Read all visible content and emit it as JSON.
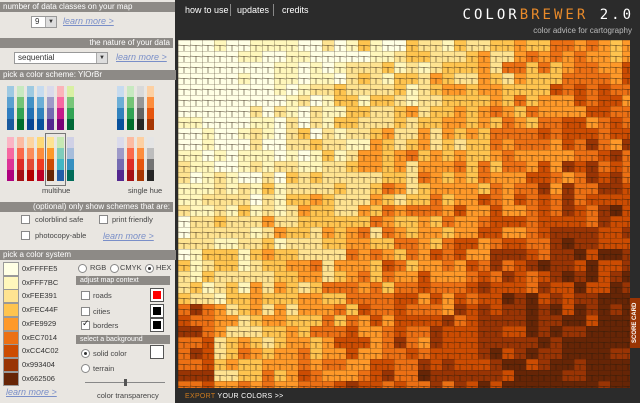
{
  "nav": {
    "how_to_use": "how to use",
    "updates": "updates",
    "credits": "credits"
  },
  "logo": {
    "part1": "COLOR",
    "part2": "BREWER",
    "version": " 2.0",
    "subtitle": "color advice for cartography"
  },
  "classes": {
    "header": "number of data classes on your map",
    "value": "9",
    "learn_more": "learn more >"
  },
  "nature": {
    "header": "the nature of your data",
    "value": "sequential",
    "learn_more": "learn more >"
  },
  "scheme": {
    "header": "pick a color scheme: YlOrBr",
    "multihue_label": "multihue",
    "singlehue_label": "single hue",
    "top_multi": [
      [
        "#9ec9e2",
        "#5aa0d0",
        "#2f7dc0",
        "#1a5a9e"
      ],
      [
        "#c7e9c0",
        "#74c476",
        "#31a354",
        "#006d2c"
      ],
      [
        "#9ecae1",
        "#4292c6",
        "#2171b5",
        "#084594"
      ],
      [
        "#c6dbef",
        "#6baed6",
        "#3182bd",
        "#08519c"
      ],
      [
        "#dadaeb",
        "#9e9ac8",
        "#756bb1",
        "#54278f"
      ],
      [
        "#fbb4b9",
        "#f768a1",
        "#c51b8a",
        "#7a0177"
      ],
      [
        "#d9f0a3",
        "#78c679",
        "#31a354",
        "#006837"
      ]
    ],
    "top_single": [
      [
        "#c6dbef",
        "#6baed6",
        "#3182bd",
        "#08519c"
      ],
      [
        "#c7e9c0",
        "#74c476",
        "#31a354",
        "#006d2c"
      ],
      [
        "#d9d9d9",
        "#969696",
        "#636363",
        "#252525"
      ],
      [
        "#fdd0a2",
        "#fd8d3c",
        "#e6550d",
        "#a63603"
      ]
    ],
    "bottom_multi": [
      [
        "#fbb4c4",
        "#f768a1",
        "#dd3497",
        "#ae017e"
      ],
      [
        "#fcbba1",
        "#fb6a4a",
        "#de2d26",
        "#a50f15"
      ],
      [
        "#fdd49e",
        "#fc8d59",
        "#e34a33",
        "#b30000"
      ],
      [
        "#fed976",
        "#fd8d3c",
        "#f03b20",
        "#bd0026"
      ],
      [
        "#fee391",
        "#fe9929",
        "#cc4c02",
        "#662506"
      ],
      [
        "#c7e9b4",
        "#7fcdbb",
        "#41b6c4",
        "#225ea8"
      ],
      [
        "#d0d1e6",
        "#a6bddb",
        "#3690c0",
        "#016c59"
      ]
    ],
    "bottom_single": [
      [
        "#dadaeb",
        "#9e9ac8",
        "#756bb1",
        "#54278f"
      ],
      [
        "#fcbba1",
        "#fb6a4a",
        "#de2d26",
        "#a50f15"
      ],
      [
        "#fdd0a2",
        "#fd8d3c",
        "#e6550d",
        "#a63603"
      ],
      [
        "#e5e5e5",
        "#bdbdbd",
        "#737373",
        "#252525"
      ]
    ]
  },
  "filters": {
    "header": "(optional) only show schemes that are:",
    "colorblind": "colorblind safe",
    "print": "print friendly",
    "photocopy": "photocopy-able",
    "learn_more": "learn more >"
  },
  "color_system": {
    "header": "pick a color system",
    "rgb": "RGB",
    "cmyk": "CMYK",
    "hex": "HEX",
    "values": [
      "0xFFFFE5",
      "0xFFF7BC",
      "0xFEE391",
      "0xFEC44F",
      "0xFE9929",
      "0xEC7014",
      "0xCC4C02",
      "0x993404",
      "0x662506"
    ],
    "colors": [
      "#ffffe5",
      "#fff7bc",
      "#fee391",
      "#fec44f",
      "#fe9929",
      "#ec7014",
      "#cc4c02",
      "#993404",
      "#662506"
    ],
    "learn_more": "learn more >"
  },
  "context": {
    "header": "adjust map context",
    "roads": "roads",
    "cities": "cities",
    "borders": "borders",
    "roads_color": "#ff0000",
    "cities_color": "#000000",
    "borders_color": "#000000"
  },
  "background": {
    "header": "select a background",
    "solid": "solid color",
    "terrain": "terrain",
    "solid_color": "#ffffff",
    "transparency_label": "color transparency",
    "transparency": 0.5
  },
  "bottom": {
    "export": "EXPORT",
    "export2": "YOUR COLORS >>",
    "score_card": "SCORE CARD"
  }
}
